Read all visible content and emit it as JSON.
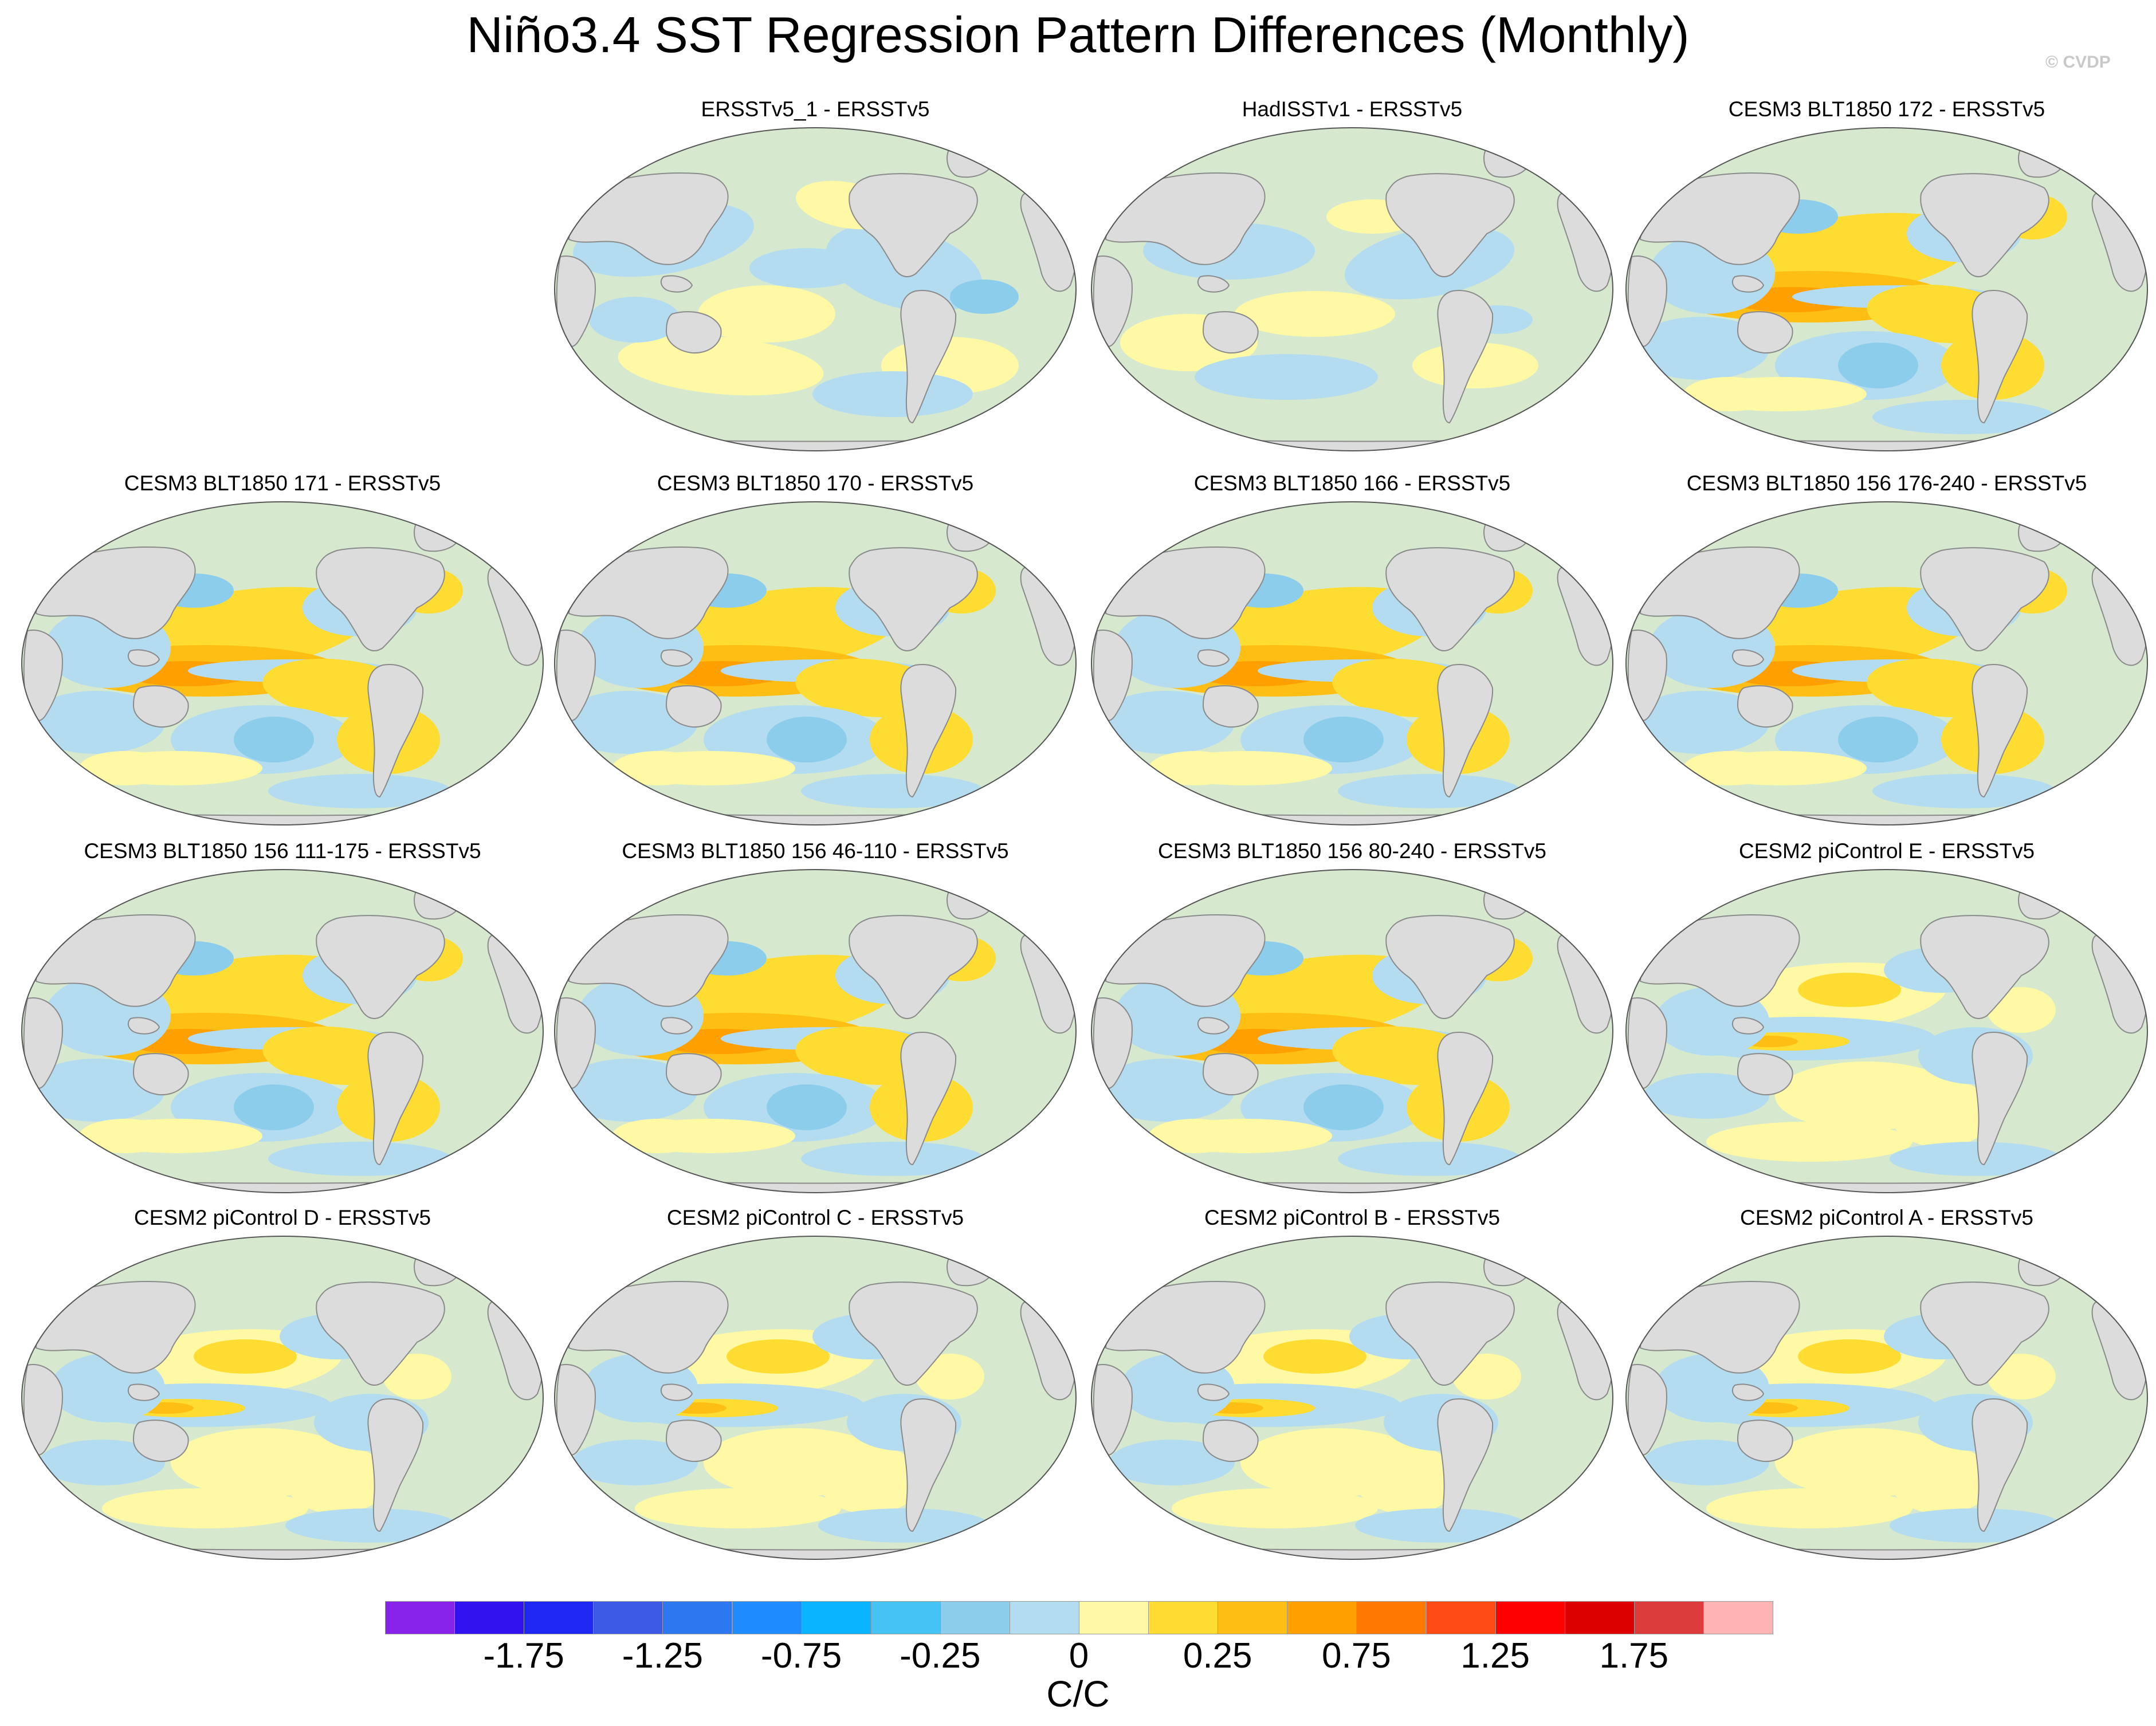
{
  "title": "Niño3.4 SST Regression Pattern Differences (Monthly)",
  "watermark": "© CVDP",
  "panels": [
    {
      "title": "ERSSTv5_1 - ERSSTv5",
      "row": 0,
      "col": 1,
      "style": "obs"
    },
    {
      "title": "HadISSTv1 - ERSSTv5",
      "row": 0,
      "col": 2,
      "style": "obs2"
    },
    {
      "title": "CESM3 BLT1850 172 - ERSSTv5",
      "row": 0,
      "col": 3,
      "style": "cesm3"
    },
    {
      "title": "CESM3 BLT1850 171 - ERSSTv5",
      "row": 1,
      "col": 0,
      "style": "cesm3"
    },
    {
      "title": "CESM3 BLT1850 170 - ERSSTv5",
      "row": 1,
      "col": 1,
      "style": "cesm3"
    },
    {
      "title": "CESM3 BLT1850 166 - ERSSTv5",
      "row": 1,
      "col": 2,
      "style": "cesm3"
    },
    {
      "title": "CESM3 BLT1850 156 176-240 - ERSSTv5",
      "row": 1,
      "col": 3,
      "style": "cesm3"
    },
    {
      "title": "CESM3 BLT1850 156 111-175 - ERSSTv5",
      "row": 2,
      "col": 0,
      "style": "cesm3"
    },
    {
      "title": "CESM3 BLT1850 156 46-110 - ERSSTv5",
      "row": 2,
      "col": 1,
      "style": "cesm3"
    },
    {
      "title": "CESM3 BLT1850 156 80-240 - ERSSTv5",
      "row": 2,
      "col": 2,
      "style": "cesm3"
    },
    {
      "title": "CESM2 piControl E - ERSSTv5",
      "row": 2,
      "col": 3,
      "style": "cesm2"
    },
    {
      "title": "CESM2 piControl D - ERSSTv5",
      "row": 3,
      "col": 0,
      "style": "cesm2"
    },
    {
      "title": "CESM2 piControl C - ERSSTv5",
      "row": 3,
      "col": 1,
      "style": "cesm2"
    },
    {
      "title": "CESM2 piControl B - ERSSTv5",
      "row": 3,
      "col": 2,
      "style": "cesm2"
    },
    {
      "title": "CESM2 piControl A - ERSSTv5",
      "row": 3,
      "col": 3,
      "style": "cesm2"
    }
  ],
  "colorbar": {
    "colors": [
      "#8722e8",
      "#3213f0",
      "#1e28f0",
      "#3c5ae6",
      "#2d78f0",
      "#1e8cff",
      "#0ab4ff",
      "#46c3f5",
      "#8ccdeb",
      "#b4dcf0",
      "#fff9a5",
      "#ffdc32",
      "#ffbe14",
      "#ffa000",
      "#ff7800",
      "#ff4b14",
      "#ff0000",
      "#dc0000",
      "#dc3c3c",
      "#ffb4b4"
    ],
    "tick_labels": [
      {
        "text": "-1.75",
        "index": 2
      },
      {
        "text": "-1.25",
        "index": 4
      },
      {
        "text": "-0.75",
        "index": 6
      },
      {
        "text": "-0.25",
        "index": 8
      },
      {
        "text": "0",
        "index": 10
      },
      {
        "text": "0.25",
        "index": 12
      },
      {
        "text": "0.75",
        "index": 14
      },
      {
        "text": "1.25",
        "index": 16
      },
      {
        "text": "1.75",
        "index": 18
      }
    ],
    "units": "C/C"
  },
  "map_colors": {
    "land": "#dcdcdc",
    "coast": "#8a8a8a",
    "light_blue": "#b4dcf0",
    "blue": "#8ccdeb",
    "deep_blue": "#46c3f5",
    "pale_yellow": "#fff9a5",
    "yellow": "#ffdc32",
    "orange": "#ffbe14",
    "deep_orange": "#ffa000"
  }
}
